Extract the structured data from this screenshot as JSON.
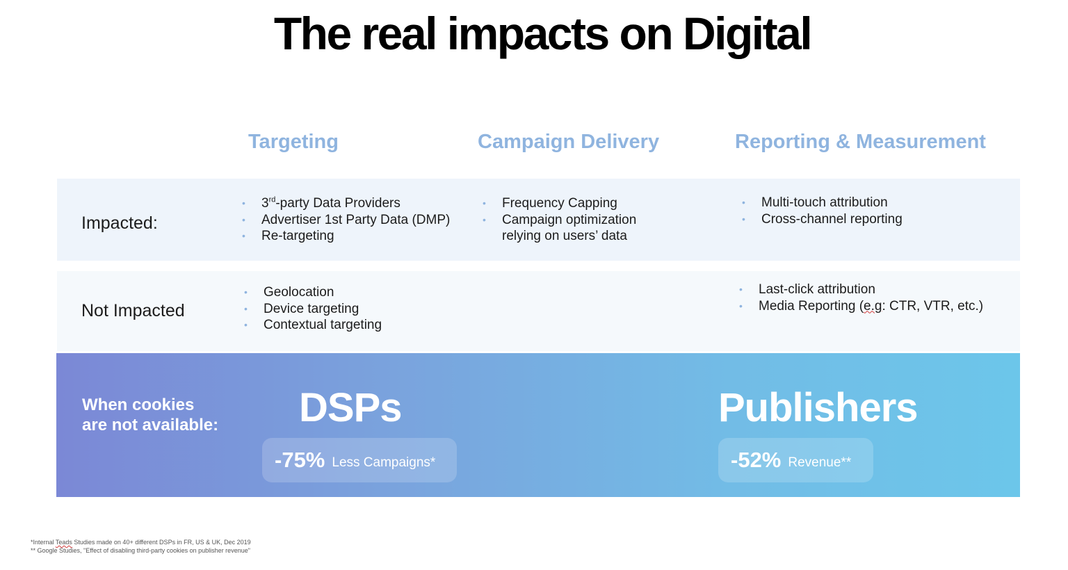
{
  "title": "The real impacts on Digital",
  "columns": {
    "targeting": "Targeting",
    "campaign_delivery": "Campaign Delivery",
    "reporting": "Reporting & Measurement"
  },
  "impacted": {
    "label": "Impacted:",
    "targeting": {
      "item1_num": "3",
      "item1_sup": "rd",
      "item1_rest": "-party Data Providers",
      "item2": "Advertiser 1st Party Data (DMP)",
      "item3": "Re-targeting"
    },
    "campaign_delivery": {
      "item1": "Frequency Capping",
      "item2_line1": "Campaign optimization",
      "item2_line2": "relying on users’ data"
    },
    "reporting": {
      "item1": "Multi-touch attribution",
      "item2": "Cross-channel reporting"
    }
  },
  "not_impacted": {
    "label": "Not Impacted",
    "targeting": {
      "item1": "Geolocation",
      "item2": "Device targeting",
      "item3": "Contextual targeting"
    },
    "reporting": {
      "item1": "Last-click attribution",
      "item2_pre": "Media Reporting (",
      "item2_eg": "e.g",
      "item2_post": ": CTR, VTR, etc.)"
    }
  },
  "cookies": {
    "line1": "When cookies",
    "line2": "are not available:",
    "dsps": {
      "title": "DSPs",
      "percent": "-75%",
      "desc": "Less Campaigns*"
    },
    "publishers": {
      "title": "Publishers",
      "percent": "-52%",
      "desc": "Revenue**"
    }
  },
  "footnotes": {
    "line1_pre": "*Internal ",
    "line1_teads": "Teads",
    "line1_post": " Studies made on 40+ different DSPs in FR, US & UK, Dec 2019",
    "line2": "** Google Studies, \"Effect of disabling third-party cookies on publisher revenue\""
  },
  "colors": {
    "heading_blue": "#8fb4df",
    "gradient_start": "#7b88d6",
    "gradient_end": "#6cc6ea"
  }
}
